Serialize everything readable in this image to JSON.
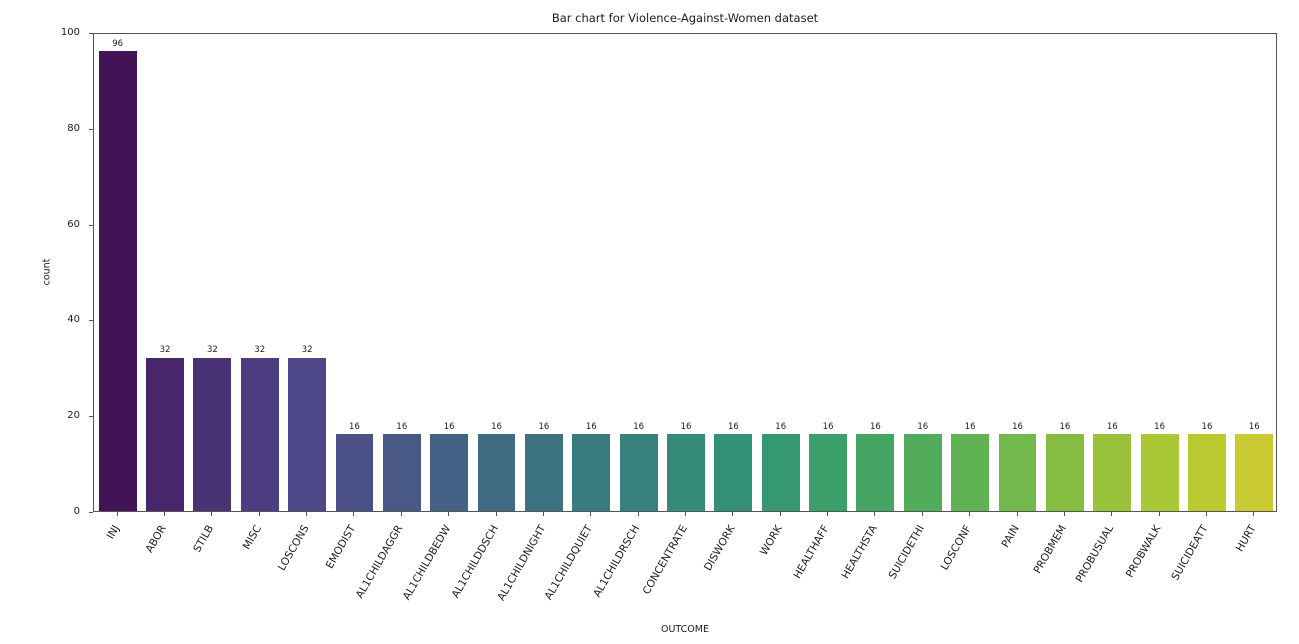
{
  "chart_data": {
    "type": "bar",
    "title": "Bar chart for Violence-Against-Women dataset",
    "xlabel": "OUTCOME",
    "ylabel": "count",
    "ylim": [
      0,
      100
    ],
    "yticks": [
      0,
      20,
      40,
      60,
      80,
      100
    ],
    "grid": false,
    "legend_position": "none",
    "x_tick_rotation_deg": 60,
    "show_value_labels": true,
    "palette_name": "viridis",
    "categories": [
      "INJ",
      "ABOR",
      "STILB",
      "MISC",
      "LOSCONS",
      "EMODIST",
      "AL1CHILDAGGR",
      "AL1CHILDBEDW",
      "AL1CHILDDSCH",
      "AL1CHILDNIGHT",
      "AL1CHILDQUIET",
      "AL1CHILDRSCH",
      "CONCENTRATE",
      "DISWORK",
      "WORK",
      "HEALTHAFF",
      "HEALTHSTA",
      "SUICIDETHI",
      "LOSCONF",
      "PAIN",
      "PROBMEM",
      "PROBUSUAL",
      "PROBWALK",
      "SUICIDEATT",
      "HURT"
    ],
    "values": [
      96,
      32,
      32,
      32,
      32,
      16,
      16,
      16,
      16,
      16,
      16,
      16,
      16,
      16,
      16,
      16,
      16,
      16,
      16,
      16,
      16,
      16,
      16,
      16,
      16
    ],
    "bar_colors": [
      "#421457",
      "#472769",
      "#4a3375",
      "#4c3d80",
      "#4d4687",
      "#4b5087",
      "#485986",
      "#446285",
      "#406b83",
      "#3d7381",
      "#3a7b7f",
      "#37827c",
      "#358a79",
      "#349175",
      "#369870",
      "#3c9f6a",
      "#45a663",
      "#52ac5b",
      "#61b253",
      "#72b84b",
      "#85bd43",
      "#98c33b",
      "#aac735",
      "#bcca32",
      "#caca32"
    ],
    "axis_color": "#555555",
    "text_color": "#1c1c1c",
    "background_color": "#ffffff"
  }
}
